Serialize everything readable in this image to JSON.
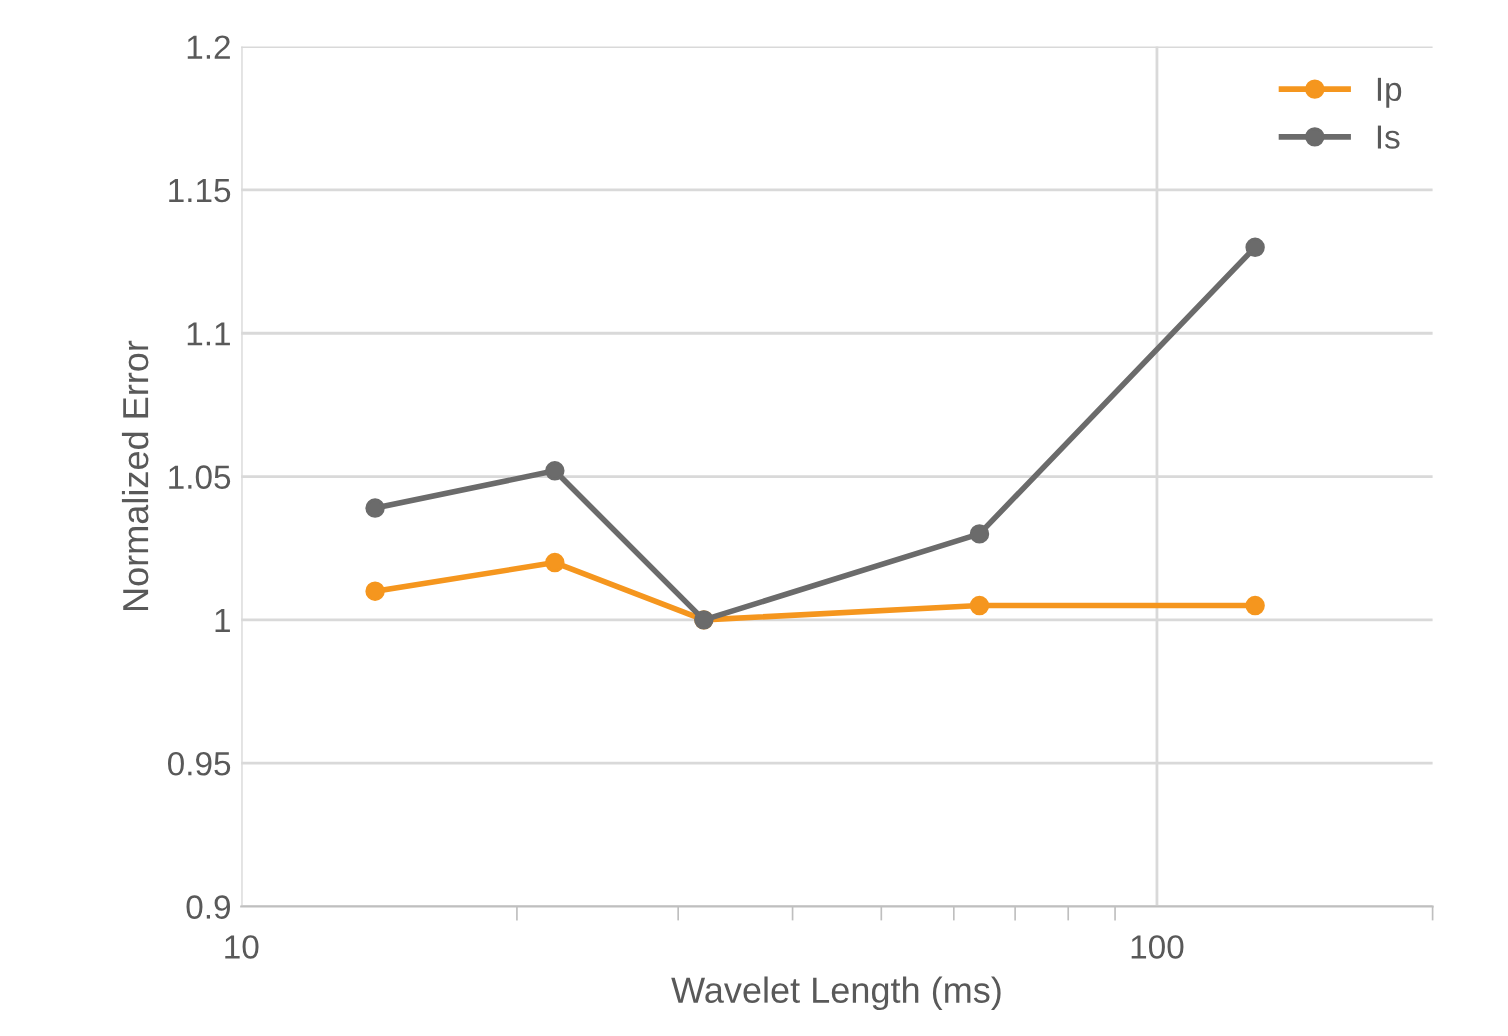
{
  "chart_data": {
    "type": "line",
    "xlabel": "Wavelet Length (ms)",
    "ylabel": "Normalized Error",
    "x": [
      14,
      22,
      32,
      64,
      128
    ],
    "series": [
      {
        "name": "Ip",
        "color": "#f5961e",
        "values": [
          1.01,
          1.02,
          1.0,
          1.005,
          1.005
        ]
      },
      {
        "name": "Is",
        "color": "#6b6b6b",
        "values": [
          1.039,
          1.052,
          1.0,
          1.03,
          1.13
        ]
      }
    ],
    "log": "x",
    "xlim": [
      10,
      200
    ],
    "xticks": [
      10,
      100
    ],
    "ylim": [
      0.9,
      1.2
    ],
    "yticks": [
      0.9,
      0.95,
      1,
      1.05,
      1.1,
      1.15,
      1.2
    ],
    "grid": true,
    "legend": "top right",
    "marker": "circle",
    "line_style": "solid"
  }
}
